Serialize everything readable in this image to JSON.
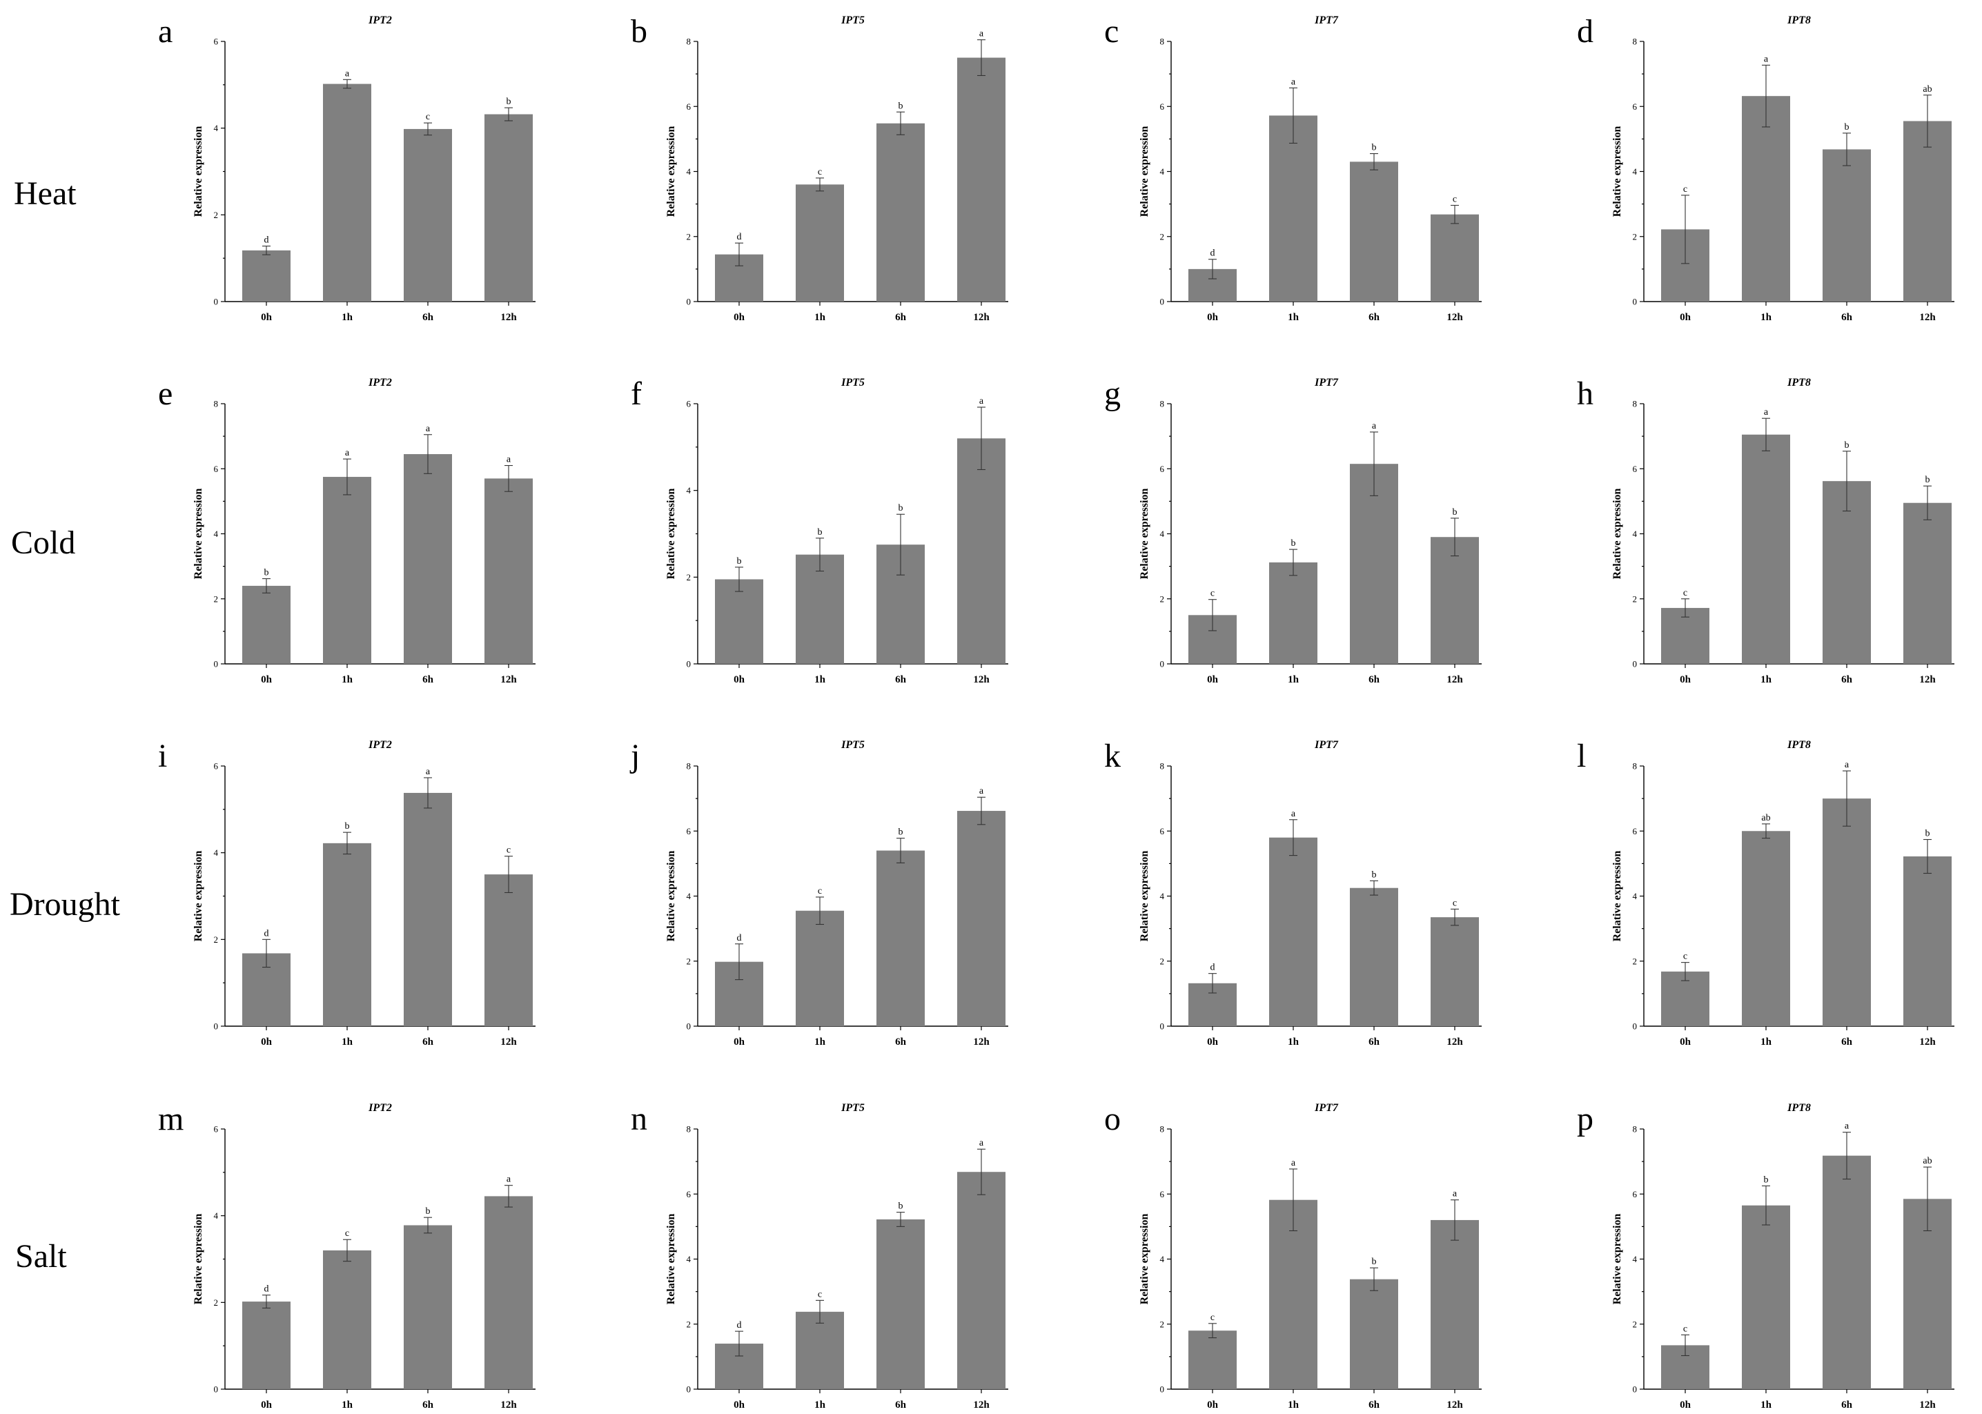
{
  "row_labels": [
    "Heat",
    "Cold",
    "Drought",
    "Salt"
  ],
  "ylabel": "Relative expression",
  "colors": {
    "bar": "#808080",
    "axis": "#000000",
    "error_bar": "#333333"
  },
  "chart_data": [
    {
      "letter": "a",
      "title": "IPT2",
      "type": "bar",
      "categories": [
        "0h",
        "1h",
        "6h",
        "12h"
      ],
      "ylim": [
        0,
        6
      ],
      "yticks": [
        0,
        2,
        4,
        6
      ],
      "values": [
        1.18,
        5.02,
        3.98,
        4.32
      ],
      "errors": [
        0.1,
        0.1,
        0.14,
        0.15
      ],
      "significance": [
        "d",
        "a",
        "c",
        "b"
      ]
    },
    {
      "letter": "b",
      "title": "IPT5",
      "type": "bar",
      "categories": [
        "0h",
        "1h",
        "6h",
        "12h"
      ],
      "ylim": [
        0,
        8
      ],
      "yticks": [
        0,
        2,
        4,
        6,
        8
      ],
      "values": [
        1.45,
        3.6,
        5.48,
        7.5
      ],
      "errors": [
        0.35,
        0.2,
        0.35,
        0.55
      ],
      "significance": [
        "d",
        "c",
        "b",
        "a"
      ]
    },
    {
      "letter": "c",
      "title": "IPT7",
      "type": "bar",
      "categories": [
        "0h",
        "1h",
        "6h",
        "12h"
      ],
      "ylim": [
        0,
        8
      ],
      "yticks": [
        0,
        2,
        4,
        6,
        8
      ],
      "values": [
        1.0,
        5.72,
        4.3,
        2.68
      ],
      "errors": [
        0.3,
        0.85,
        0.25,
        0.28
      ],
      "significance": [
        "d",
        "a",
        "b",
        "c"
      ]
    },
    {
      "letter": "d",
      "title": "IPT8",
      "type": "bar",
      "categories": [
        "0h",
        "1h",
        "6h",
        "12h"
      ],
      "ylim": [
        0,
        8
      ],
      "yticks": [
        0,
        2,
        4,
        6,
        8
      ],
      "values": [
        2.22,
        6.32,
        4.68,
        5.55
      ],
      "errors": [
        1.05,
        0.95,
        0.5,
        0.8
      ],
      "significance": [
        "c",
        "a",
        "b",
        "ab"
      ]
    },
    {
      "letter": "e",
      "title": "IPT2",
      "type": "bar",
      "categories": [
        "0h",
        "1h",
        "6h",
        "12h"
      ],
      "ylim": [
        0,
        8
      ],
      "yticks": [
        0,
        2,
        4,
        6,
        8
      ],
      "values": [
        2.4,
        5.75,
        6.45,
        5.7
      ],
      "errors": [
        0.22,
        0.55,
        0.6,
        0.4
      ],
      "significance": [
        "b",
        "a",
        "a",
        "a"
      ]
    },
    {
      "letter": "f",
      "title": "IPT5",
      "type": "bar",
      "categories": [
        "0h",
        "1h",
        "6h",
        "12h"
      ],
      "ylim": [
        0,
        6
      ],
      "yticks": [
        0,
        2,
        4,
        6
      ],
      "values": [
        1.95,
        2.52,
        2.75,
        5.2
      ],
      "errors": [
        0.28,
        0.38,
        0.7,
        0.72
      ],
      "significance": [
        "b",
        "b",
        "b",
        "a"
      ]
    },
    {
      "letter": "g",
      "title": "IPT7",
      "type": "bar",
      "categories": [
        "0h",
        "1h",
        "6h",
        "12h"
      ],
      "ylim": [
        0,
        8
      ],
      "yticks": [
        0,
        2,
        4,
        6,
        8
      ],
      "values": [
        1.5,
        3.12,
        6.15,
        3.9
      ],
      "errors": [
        0.48,
        0.4,
        0.98,
        0.58
      ],
      "significance": [
        "c",
        "b",
        "a",
        "b"
      ]
    },
    {
      "letter": "h",
      "title": "IPT8",
      "type": "bar",
      "categories": [
        "0h",
        "1h",
        "6h",
        "12h"
      ],
      "ylim": [
        0,
        8
      ],
      "yticks": [
        0,
        2,
        4,
        6,
        8
      ],
      "values": [
        1.72,
        7.05,
        5.62,
        4.95
      ],
      "errors": [
        0.28,
        0.5,
        0.92,
        0.52
      ],
      "significance": [
        "c",
        "a",
        "b",
        "b"
      ]
    },
    {
      "letter": "i",
      "title": "IPT2",
      "type": "bar",
      "categories": [
        "0h",
        "1h",
        "6h",
        "12h"
      ],
      "ylim": [
        0,
        6
      ],
      "yticks": [
        0,
        2,
        4,
        6
      ],
      "values": [
        1.68,
        4.22,
        5.38,
        3.5
      ],
      "errors": [
        0.32,
        0.25,
        0.35,
        0.42
      ],
      "significance": [
        "d",
        "b",
        "a",
        "c"
      ]
    },
    {
      "letter": "j",
      "title": "IPT5",
      "type": "bar",
      "categories": [
        "0h",
        "1h",
        "6h",
        "12h"
      ],
      "ylim": [
        0,
        8
      ],
      "yticks": [
        0,
        2,
        4,
        6,
        8
      ],
      "values": [
        1.98,
        3.55,
        5.4,
        6.62
      ],
      "errors": [
        0.55,
        0.42,
        0.38,
        0.42
      ],
      "significance": [
        "d",
        "c",
        "b",
        "a"
      ]
    },
    {
      "letter": "k",
      "title": "IPT7",
      "type": "bar",
      "categories": [
        "0h",
        "1h",
        "6h",
        "12h"
      ],
      "ylim": [
        0,
        8
      ],
      "yticks": [
        0,
        2,
        4,
        6,
        8
      ],
      "values": [
        1.32,
        5.8,
        4.25,
        3.35
      ],
      "errors": [
        0.3,
        0.55,
        0.22,
        0.25
      ],
      "significance": [
        "d",
        "a",
        "b",
        "c"
      ]
    },
    {
      "letter": "l",
      "title": "IPT8",
      "type": "bar",
      "categories": [
        "0h",
        "1h",
        "6h",
        "12h"
      ],
      "ylim": [
        0,
        8
      ],
      "yticks": [
        0,
        2,
        4,
        6,
        8
      ],
      "values": [
        1.68,
        6.0,
        7.0,
        5.22
      ],
      "errors": [
        0.28,
        0.22,
        0.85,
        0.52
      ],
      "significance": [
        "c",
        "ab",
        "a",
        "b"
      ]
    },
    {
      "letter": "m",
      "title": "IPT2",
      "type": "bar",
      "categories": [
        "0h",
        "1h",
        "6h",
        "12h"
      ],
      "ylim": [
        0,
        6
      ],
      "yticks": [
        0,
        2,
        4,
        6
      ],
      "values": [
        2.02,
        3.2,
        3.78,
        4.45
      ],
      "errors": [
        0.15,
        0.25,
        0.18,
        0.25
      ],
      "significance": [
        "d",
        "c",
        "b",
        "a"
      ]
    },
    {
      "letter": "n",
      "title": "IPT5",
      "type": "bar",
      "categories": [
        "0h",
        "1h",
        "6h",
        "12h"
      ],
      "ylim": [
        0,
        8
      ],
      "yticks": [
        0,
        2,
        4,
        6,
        8
      ],
      "values": [
        1.4,
        2.38,
        5.22,
        6.68
      ],
      "errors": [
        0.38,
        0.35,
        0.22,
        0.7
      ],
      "significance": [
        "d",
        "c",
        "b",
        "a"
      ]
    },
    {
      "letter": "o",
      "title": "IPT7",
      "type": "bar",
      "categories": [
        "0h",
        "1h",
        "6h",
        "12h"
      ],
      "ylim": [
        0,
        8
      ],
      "yticks": [
        0,
        2,
        4,
        6,
        8
      ],
      "values": [
        1.8,
        5.82,
        3.38,
        5.2
      ],
      "errors": [
        0.22,
        0.95,
        0.35,
        0.62
      ],
      "significance": [
        "c",
        "a",
        "b",
        "a"
      ]
    },
    {
      "letter": "p",
      "title": "IPT8",
      "type": "bar",
      "categories": [
        "0h",
        "1h",
        "6h",
        "12h"
      ],
      "ylim": [
        0,
        8
      ],
      "yticks": [
        0,
        2,
        4,
        6,
        8
      ],
      "values": [
        1.35,
        5.65,
        7.18,
        5.85
      ],
      "errors": [
        0.32,
        0.6,
        0.72,
        0.98
      ],
      "significance": [
        "c",
        "b",
        "a",
        "ab"
      ]
    }
  ]
}
